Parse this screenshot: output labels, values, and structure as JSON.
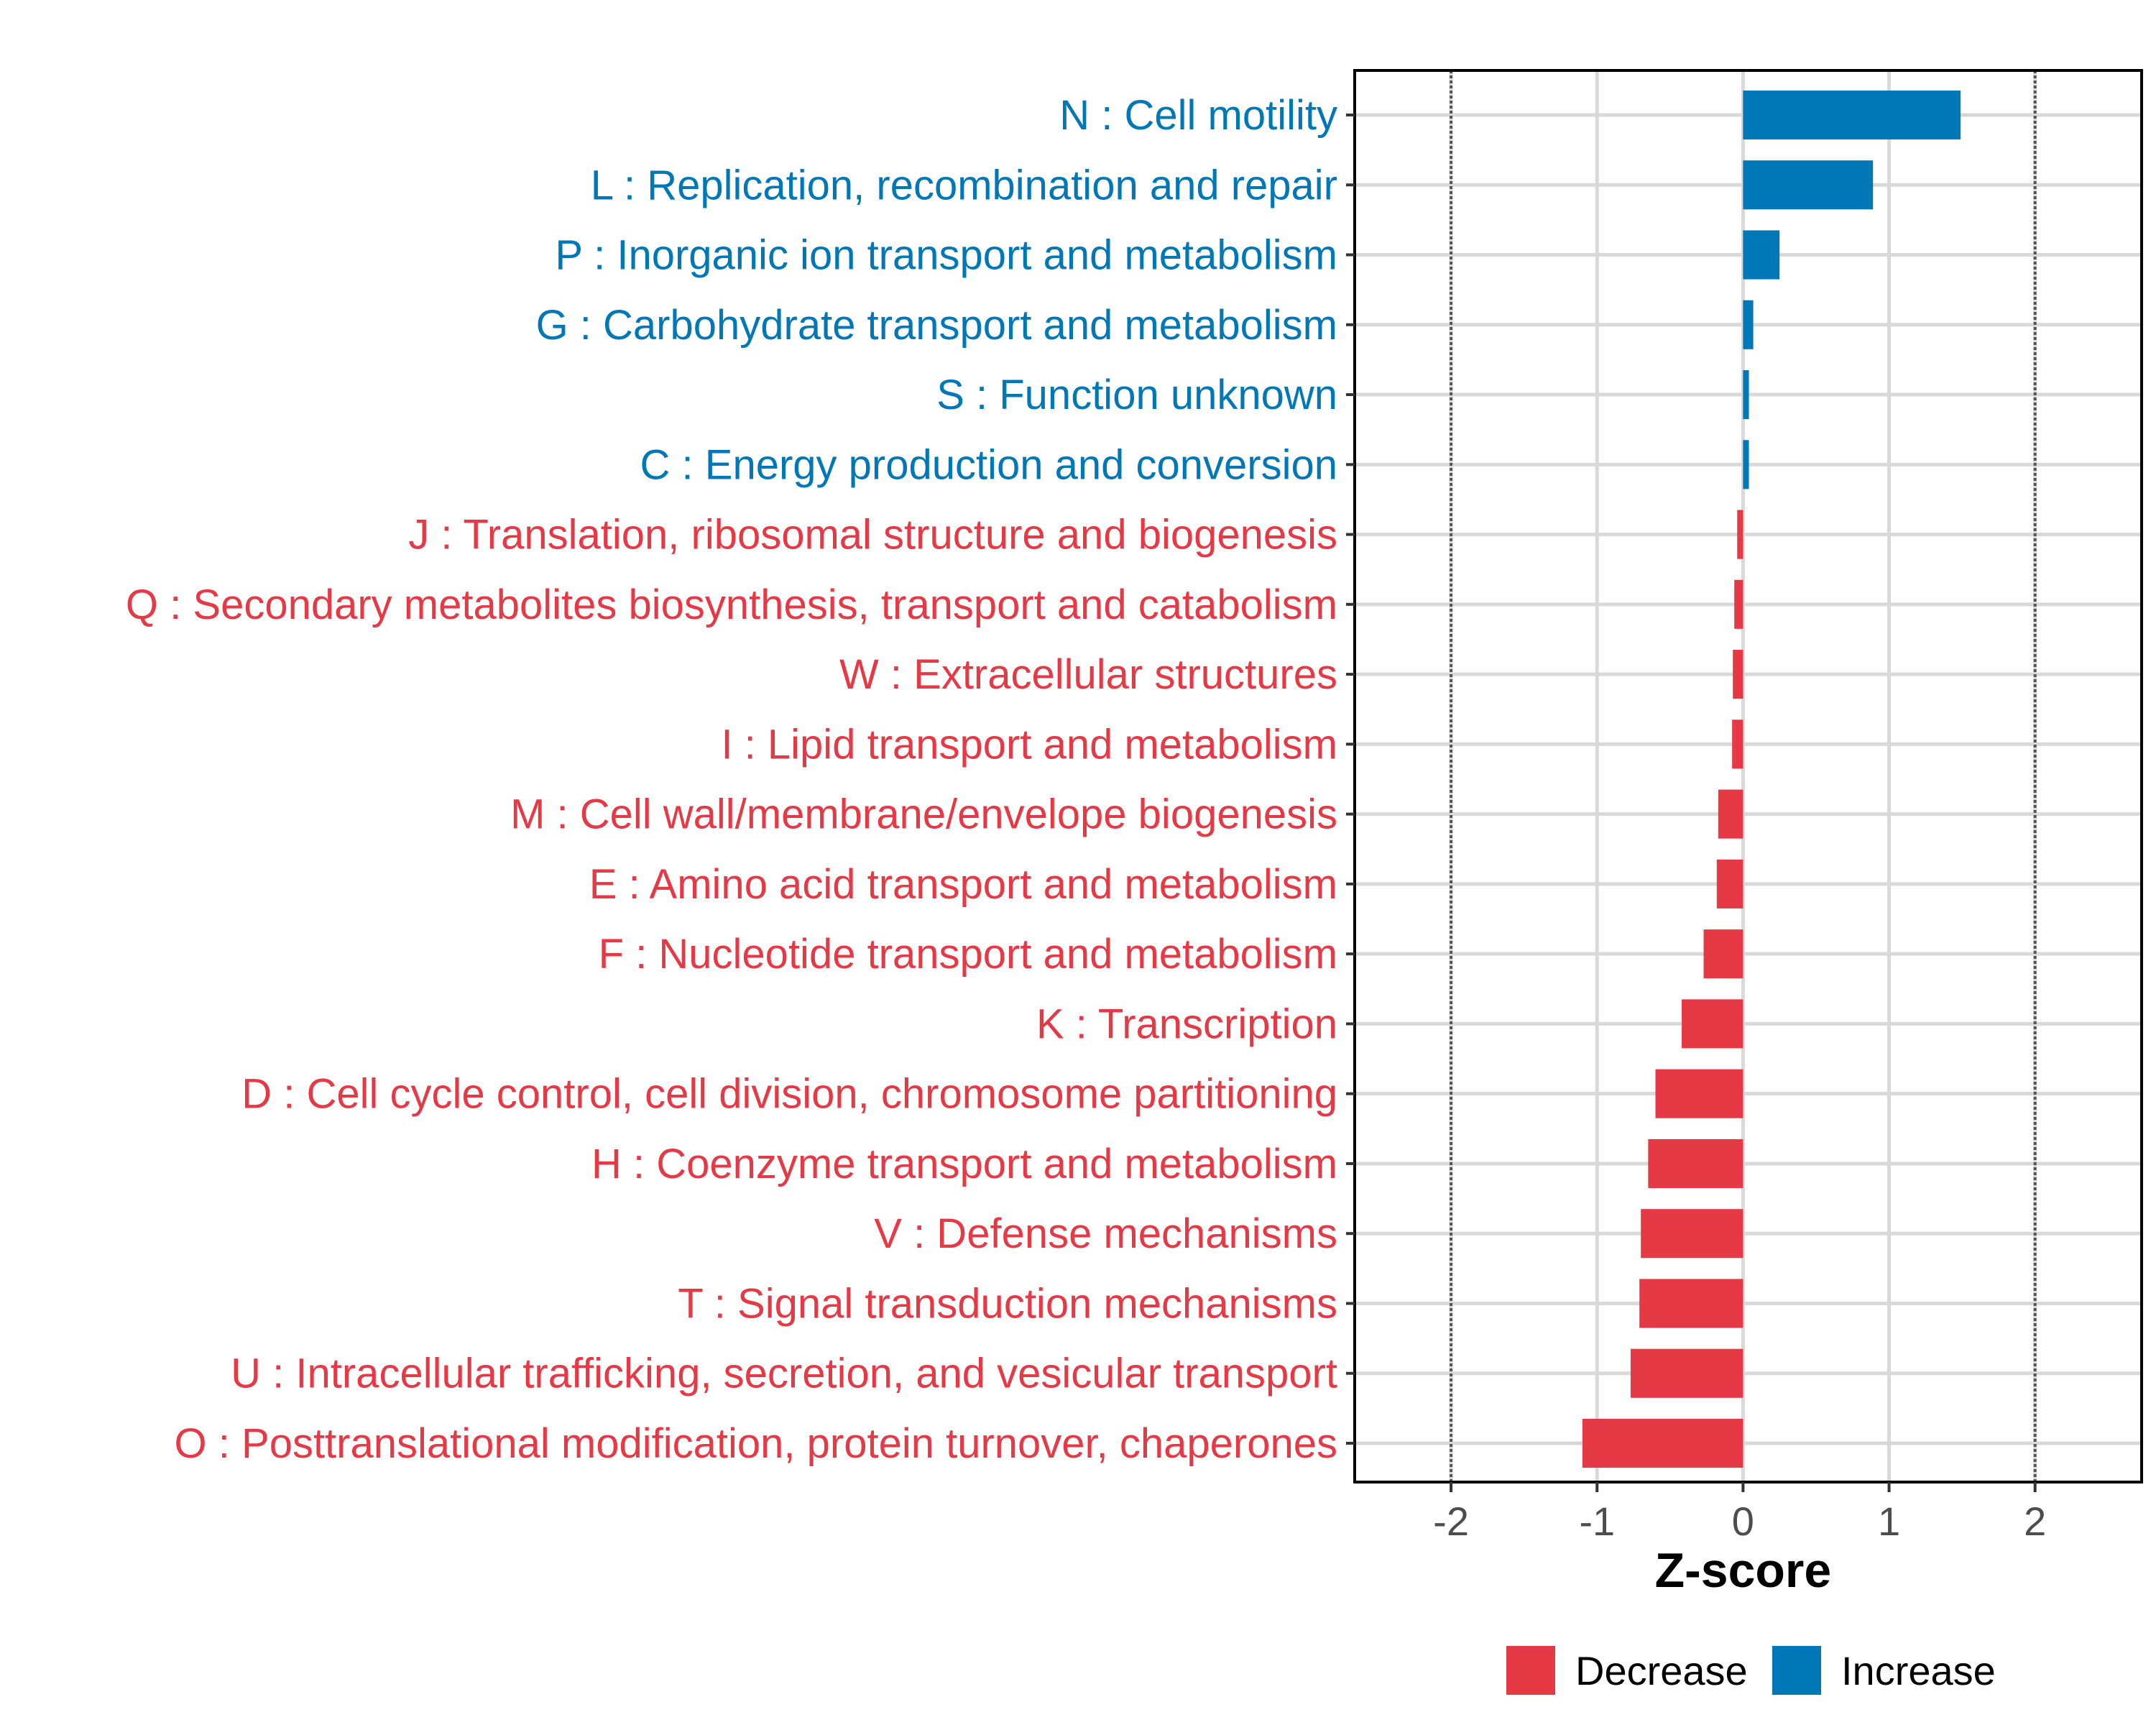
{
  "chart_data": {
    "type": "bar",
    "orientation": "horizontal",
    "title": "",
    "xlabel": "Z-score",
    "ylabel": "",
    "xlim": [
      -2.66,
      2.73
    ],
    "xticks": [
      -2,
      -1,
      0,
      1,
      2
    ],
    "xtick_labels": [
      "-2",
      "-1",
      "0",
      "1",
      "2"
    ],
    "reference_lines": [
      -2,
      2
    ],
    "grid": true,
    "legend_position": "bottom",
    "legend": [
      {
        "name": "Decrease",
        "color": "#E63946"
      },
      {
        "name": "Increase",
        "color": "#0077B6"
      }
    ],
    "categories": [
      "N : Cell motility",
      "L : Replication, recombination and repair",
      "P : Inorganic ion transport and metabolism",
      "G : Carbohydrate transport and metabolism",
      "S : Function unknown",
      "C : Energy production and conversion",
      "J : Translation, ribosomal structure and biogenesis",
      "Q : Secondary metabolites biosynthesis, transport and catabolism",
      "W : Extracellular structures",
      "I : Lipid transport and metabolism",
      "M : Cell wall/membrane/envelope biogenesis",
      "E : Amino acid transport and metabolism",
      "F : Nucleotide transport and metabolism",
      "K : Transcription",
      "D : Cell cycle control, cell division, chromosome partitioning",
      "H : Coenzyme transport and metabolism",
      "V : Defense mechanisms",
      "T : Signal transduction mechanisms",
      "U : Intracellular trafficking, secretion, and vesicular transport",
      "O : Posttranslational modification, protein turnover, chaperones"
    ],
    "values": [
      1.49,
      0.89,
      0.25,
      0.07,
      0.04,
      0.04,
      -0.04,
      -0.06,
      -0.07,
      -0.075,
      -0.17,
      -0.18,
      -0.27,
      -0.42,
      -0.6,
      -0.65,
      -0.7,
      -0.71,
      -0.77,
      -1.1
    ],
    "groups": [
      "Increase",
      "Increase",
      "Increase",
      "Increase",
      "Increase",
      "Increase",
      "Decrease",
      "Decrease",
      "Decrease",
      "Decrease",
      "Decrease",
      "Decrease",
      "Decrease",
      "Decrease",
      "Decrease",
      "Decrease",
      "Decrease",
      "Decrease",
      "Decrease",
      "Decrease"
    ]
  }
}
